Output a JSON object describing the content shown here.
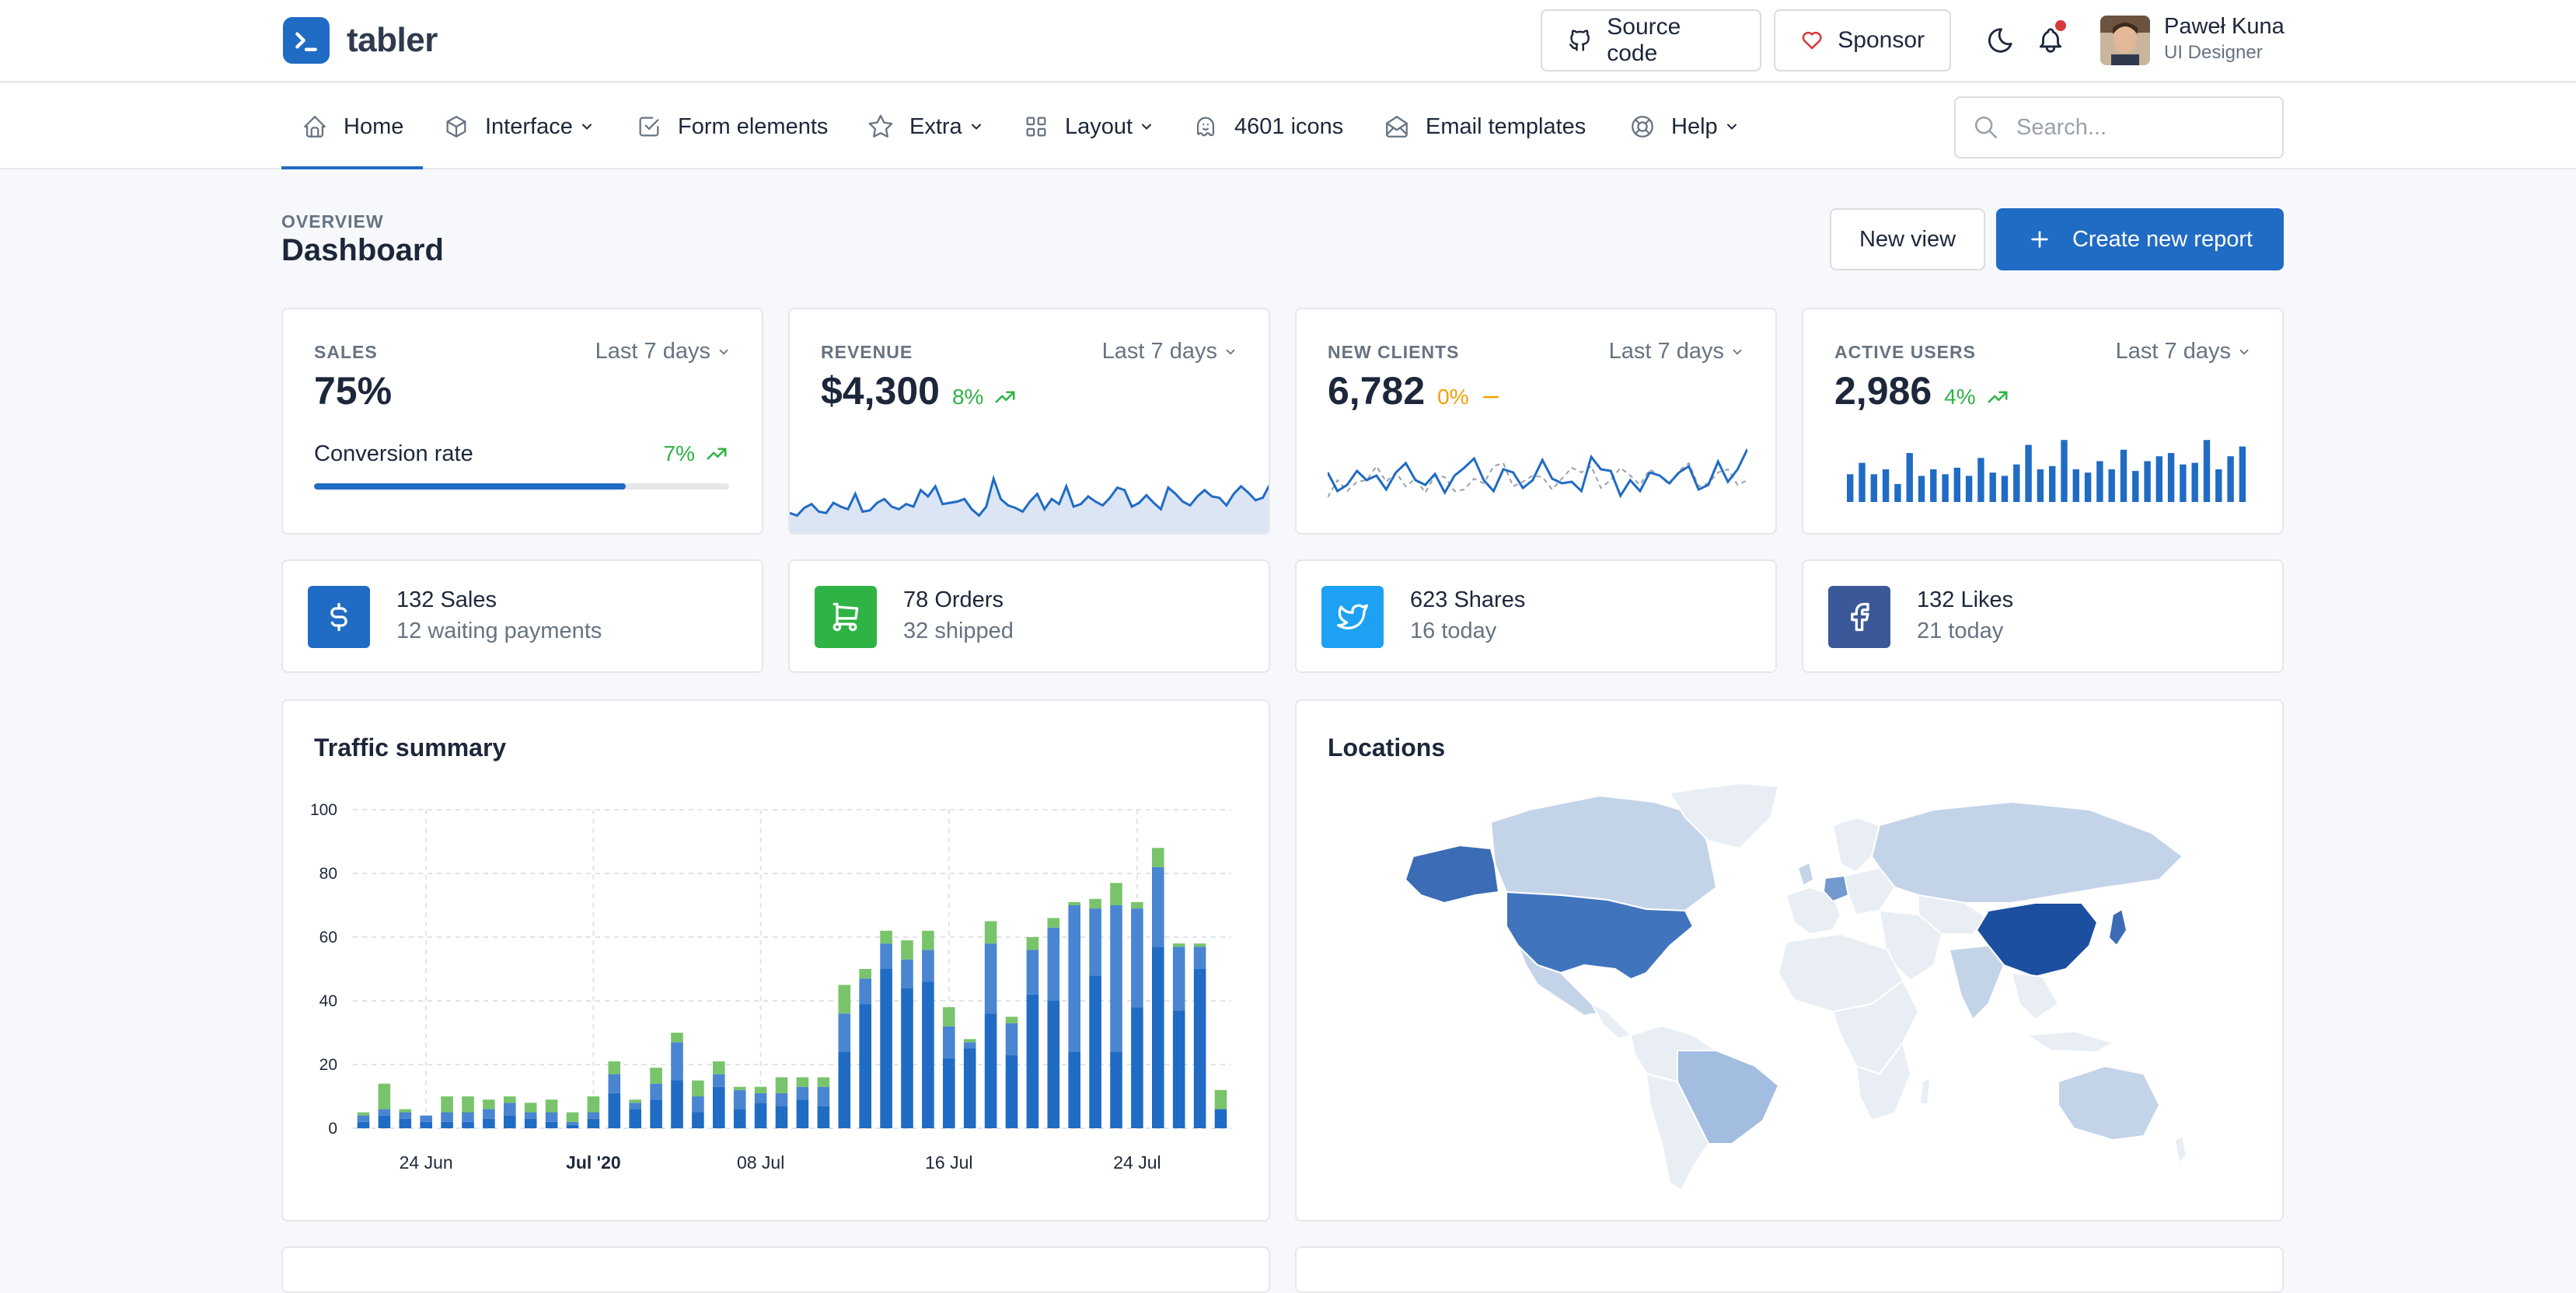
{
  "brand": {
    "name": "tabler"
  },
  "header": {
    "source_code": "Source code",
    "sponsor": "Sponsor",
    "user": {
      "name": "Paweł Kuna",
      "role": "UI Designer"
    }
  },
  "nav": {
    "items": [
      {
        "label": "Home",
        "icon": "home-icon"
      },
      {
        "label": "Interface",
        "icon": "package-icon"
      },
      {
        "label": "Form elements",
        "icon": "checkbox-icon"
      },
      {
        "label": "Extra",
        "icon": "star-icon"
      },
      {
        "label": "Layout",
        "icon": "layout-grid-icon"
      },
      {
        "label": "4601 icons",
        "icon": "ghost-icon"
      },
      {
        "label": "Email templates",
        "icon": "mail-opened-icon"
      },
      {
        "label": "Help",
        "icon": "lifebuoy-icon"
      }
    ],
    "search_placeholder": "Search..."
  },
  "page": {
    "pretitle": "OVERVIEW",
    "title": "Dashboard",
    "new_view": "New view",
    "create_report": "Create new report"
  },
  "colors": {
    "primary": "#206bc4",
    "success": "#2fb344",
    "warning": "#f59f00",
    "twitter": "#1da1f2",
    "facebook": "#3b5998",
    "danger": "#d63939"
  },
  "stats": {
    "sales": {
      "label": "SALES",
      "period": "Last 7 days",
      "value": "75%",
      "conversion_label": "Conversion rate",
      "conversion_trend": "7%",
      "progress": 0.75
    },
    "revenue": {
      "label": "REVENUE",
      "period": "Last 7 days",
      "value": "$4,300",
      "trend": "8%"
    },
    "new_clients": {
      "label": "NEW CLIENTS",
      "period": "Last 7 days",
      "value": "6,782",
      "trend": "0%"
    },
    "active_users": {
      "label": "ACTIVE USERS",
      "period": "Last 7 days",
      "value": "2,986",
      "trend": "4%"
    }
  },
  "small_cards": [
    {
      "title": "132 Sales",
      "sub": "12 waiting payments",
      "icon": "currency-dollar-icon",
      "color": "#206bc4"
    },
    {
      "title": "78 Orders",
      "sub": "32 shipped",
      "icon": "shopping-cart-icon",
      "color": "#2fb344"
    },
    {
      "title": "623 Shares",
      "sub": "16 today",
      "icon": "twitter-icon",
      "color": "#1da1f2"
    },
    {
      "title": "132 Likes",
      "sub": "21 today",
      "icon": "facebook-icon",
      "color": "#3b5998"
    }
  ],
  "traffic": {
    "title": "Traffic summary"
  },
  "locations": {
    "title": "Locations"
  },
  "sparklines": {
    "revenue": [
      37,
      35,
      41,
      44,
      38,
      37,
      45,
      42,
      40,
      52,
      38,
      39,
      45,
      48,
      42,
      40,
      44,
      42,
      55,
      50,
      58,
      44,
      45,
      46,
      48,
      40,
      35,
      42,
      64,
      48,
      43,
      41,
      38,
      46,
      52,
      40,
      48,
      44,
      58,
      42,
      44,
      50,
      46,
      43,
      49,
      57,
      55,
      42,
      45,
      51,
      45,
      40,
      57,
      52,
      46,
      43,
      50,
      55,
      50,
      49,
      43,
      52,
      58,
      53,
      47,
      49,
      60
    ],
    "clients": [
      60,
      48,
      52,
      61,
      55,
      58,
      49,
      60,
      66,
      55,
      52,
      59,
      47,
      58,
      63,
      69,
      55,
      48,
      62,
      60,
      50,
      55,
      68,
      56,
      53,
      54,
      48,
      70,
      62,
      61,
      45,
      55,
      48,
      60,
      58,
      53,
      60,
      64,
      49,
      52,
      67,
      54,
      62,
      75
    ],
    "clients_prev": [
      44,
      55,
      48,
      54,
      55,
      64,
      54,
      60,
      51,
      56,
      47,
      58,
      57,
      48,
      49,
      56,
      53,
      64,
      66,
      51,
      54,
      58,
      57,
      49,
      56,
      63,
      60,
      64,
      50,
      55,
      63,
      58,
      52,
      62,
      58,
      52,
      61,
      66,
      51,
      53,
      60,
      62,
      52,
      55
    ],
    "active_users": [
      17,
      24,
      17,
      20,
      11,
      30,
      16,
      20,
      17,
      21,
      16,
      27,
      18,
      16,
      23,
      35,
      20,
      22,
      38,
      20,
      18,
      25,
      20,
      32,
      19,
      25,
      28,
      30,
      23,
      24,
      38,
      20,
      28,
      34
    ]
  },
  "chart_data": {
    "type": "bar",
    "stacked": true,
    "title": "Traffic summary",
    "x_tick_labels": [
      "24 Jun",
      "Jul '20",
      "08 Jul",
      "16 Jul",
      "24 Jul"
    ],
    "ylim": [
      0,
      100
    ],
    "y_ticks": [
      0,
      20,
      40,
      60,
      80,
      100
    ],
    "series": [
      {
        "color": "#206bc4",
        "values": [
          2,
          4,
          3,
          2,
          2,
          2,
          3,
          4,
          3,
          2,
          1,
          3,
          11,
          6,
          9,
          15,
          5,
          13,
          6,
          8,
          7,
          9,
          7,
          24,
          39,
          50,
          44,
          46,
          22,
          25,
          36,
          23,
          42,
          40,
          24,
          48,
          24,
          38,
          57,
          37,
          50,
          6
        ]
      },
      {
        "color": "#4a85d1",
        "values": [
          2,
          2,
          2,
          2,
          3,
          3,
          3,
          4,
          2,
          3,
          1,
          2,
          6,
          2,
          5,
          12,
          5,
          4,
          6,
          3,
          4,
          4,
          6,
          12,
          8,
          8,
          9,
          10,
          10,
          2,
          22,
          10,
          14,
          23,
          46,
          21,
          46,
          31,
          25,
          20,
          7,
          0
        ]
      },
      {
        "color": "#79c46b",
        "values": [
          1,
          8,
          1,
          0,
          5,
          5,
          3,
          2,
          3,
          4,
          3,
          5,
          4,
          1,
          5,
          3,
          5,
          4,
          1,
          2,
          5,
          3,
          3,
          9,
          3,
          4,
          6,
          6,
          6,
          1,
          7,
          2,
          4,
          3,
          1,
          3,
          7,
          2,
          6,
          1,
          1,
          6
        ]
      }
    ]
  }
}
